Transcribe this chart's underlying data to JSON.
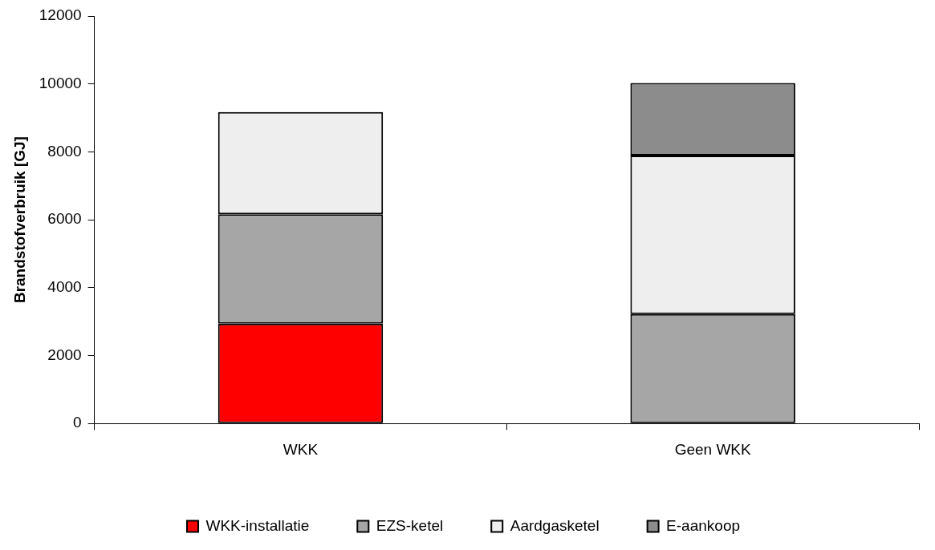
{
  "chart_data": {
    "type": "bar",
    "stacked": true,
    "ylabel": "Brandstofverbruik [GJ]",
    "categories": [
      "WKK",
      "Geen WKK"
    ],
    "series": [
      {
        "name": "WKK-installatie",
        "color": "#ff0000",
        "values": [
          2940,
          null
        ]
      },
      {
        "name": "EZS-ketel",
        "color": "#a6a6a6",
        "values": [
          3220,
          3220
        ]
      },
      {
        "name": "Aardgasketel",
        "color": "#eeeeee",
        "values": [
          3010,
          4670
        ]
      },
      {
        "name": "E-aankoop",
        "color": "#8c8c8c",
        "values": [
          null,
          2140
        ]
      }
    ],
    "ylim": [
      0,
      12000
    ],
    "yticks": [
      0,
      2000,
      4000,
      6000,
      8000,
      10000,
      12000
    ],
    "grid": false,
    "legend": "bottom"
  }
}
